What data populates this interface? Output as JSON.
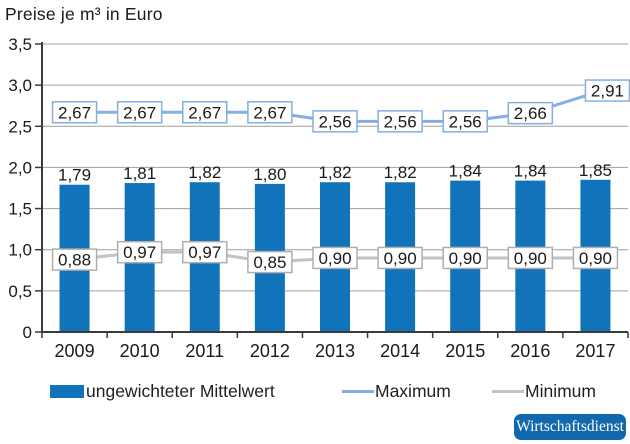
{
  "title": "Preise je m³ in Euro",
  "chart_data": {
    "type": "bar",
    "title": "Preise je m³ in Euro",
    "categories": [
      "2009",
      "2010",
      "2011",
      "2012",
      "2013",
      "2014",
      "2015",
      "2016",
      "2017"
    ],
    "series": [
      {
        "name": "ungewichteter Mittelwert",
        "kind": "bar",
        "color": "#1173b9",
        "values": [
          1.79,
          1.81,
          1.82,
          1.8,
          1.82,
          1.82,
          1.84,
          1.84,
          1.85
        ],
        "labels": [
          "1,79",
          "1,81",
          "1,82",
          "1,80",
          "1,82",
          "1,82",
          "1,84",
          "1,84",
          "1,85"
        ]
      },
      {
        "name": "Maximum",
        "kind": "line",
        "color": "#85afe0",
        "box_border": "#85afe0",
        "values": [
          2.67,
          2.67,
          2.67,
          2.67,
          2.56,
          2.56,
          2.56,
          2.66,
          2.91
        ],
        "labels": [
          "2,67",
          "2,67",
          "2,67",
          "2,67",
          "2,56",
          "2,56",
          "2,56",
          "2,66",
          "2,91"
        ]
      },
      {
        "name": "Minimum",
        "kind": "line",
        "color": "#c3c3c3",
        "box_border": "#aeaeae",
        "values": [
          0.88,
          0.97,
          0.97,
          0.85,
          0.9,
          0.9,
          0.9,
          0.9,
          0.9
        ],
        "labels": [
          "0,88",
          "0,97",
          "0,97",
          "0,85",
          "0,90",
          "0,90",
          "0,90",
          "0,90",
          "0,90"
        ]
      }
    ],
    "xlabel": "",
    "ylabel": "",
    "ylim": [
      0,
      3.5
    ],
    "yticks": [
      0,
      0.5,
      1,
      1.5,
      2,
      2.5,
      3,
      3.5
    ],
    "ytick_labels": [
      "0",
      "0,5",
      "1,0",
      "1,5",
      "2,0",
      "2,5",
      "3,0",
      "3,5"
    ],
    "grid": true,
    "legend_position": "bottom"
  },
  "legend": {
    "items": [
      {
        "label": "ungewichteter Mittelwert"
      },
      {
        "label": "Maximum"
      },
      {
        "label": "Minimum"
      }
    ]
  },
  "badge": {
    "label": "Wirtschaftsdienst",
    "color": "#1268ad"
  },
  "colors": {
    "bar": "#1173b9",
    "max_line": "#85afe0",
    "min_line": "#c3c3c3",
    "min_box_border": "#aeaeae",
    "grid": "#9f9f9f",
    "axis": "#3a3a3a",
    "text": "#1a1a1a"
  }
}
